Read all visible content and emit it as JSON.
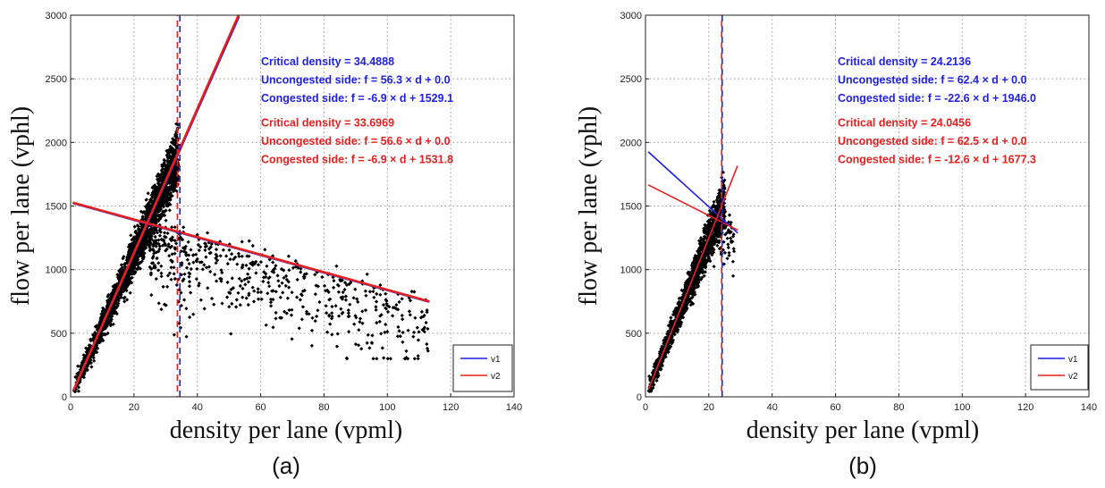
{
  "chart_data": [
    {
      "panel_label": "(a)",
      "type": "scatter",
      "xlabel": "density per lane (vpml)",
      "ylabel": "flow per lane (vphl)",
      "xlim": [
        0,
        140
      ],
      "ylim": [
        0,
        3000
      ],
      "xticks": [
        0,
        20,
        40,
        60,
        80,
        100,
        120,
        140
      ],
      "yticks": [
        0,
        500,
        1000,
        1500,
        2000,
        2500,
        3000
      ],
      "grid": true,
      "legend_position": "bottom-right",
      "series": [
        {
          "name": "v1",
          "color": "#1f1fe6",
          "critical_density": 34.4888,
          "uncongested": {
            "slope": 56.3,
            "intercept": 0.0
          },
          "congested": {
            "slope": -6.9,
            "intercept": 1529.1
          },
          "uncongested_x_range": [
            1,
            53
          ],
          "congested_x_range": [
            1,
            113
          ],
          "critical_line_style": "dashed"
        },
        {
          "name": "v2",
          "color": "#e61f1f",
          "critical_density": 33.6969,
          "uncongested": {
            "slope": 56.6,
            "intercept": 0.0
          },
          "congested": {
            "slope": -6.9,
            "intercept": 1531.8
          },
          "uncongested_x_range": [
            1,
            53
          ],
          "congested_x_range": [
            1,
            113
          ],
          "critical_line_style": "dashed"
        }
      ],
      "scatter": {
        "color": "#000000",
        "marker": "diamond",
        "free_flow_density_range": [
          1,
          34
        ],
        "congested_density_range": [
          25,
          113
        ],
        "congested_flow_max": 1950,
        "congested_flow_min": 300,
        "approx_points": 2600
      },
      "annotations": [
        {
          "text": "Critical density = 34.4888",
          "color": "#1f1fe6"
        },
        {
          "text": "Uncongested side: f = 56.3 × d + 0.0",
          "color": "#1f1fe6"
        },
        {
          "text": "Congested side:   f = -6.9 × d + 1529.1",
          "color": "#1f1fe6"
        },
        {
          "text": "Critical density = 33.6969",
          "color": "#e61f1f"
        },
        {
          "text": "Uncongested side: f = 56.6 × d + 0.0",
          "color": "#e61f1f"
        },
        {
          "text": "Congested side:   f = -6.9 × d + 1531.8",
          "color": "#e61f1f"
        }
      ]
    },
    {
      "panel_label": "(b)",
      "type": "scatter",
      "xlabel": "density per lane (vpml)",
      "ylabel": "flow per lane (vphl)",
      "xlim": [
        0,
        140
      ],
      "ylim": [
        0,
        3000
      ],
      "xticks": [
        0,
        20,
        40,
        60,
        80,
        100,
        120,
        140
      ],
      "yticks": [
        0,
        500,
        1000,
        1500,
        2000,
        2500,
        3000
      ],
      "grid": true,
      "legend_position": "bottom-right",
      "series": [
        {
          "name": "v1",
          "color": "#1f1fe6",
          "critical_density": 24.2136,
          "uncongested": {
            "slope": 62.4,
            "intercept": 0.0
          },
          "congested": {
            "slope": -22.6,
            "intercept": 1946.0
          },
          "uncongested_x_range": [
            1,
            24.2
          ],
          "congested_x_range": [
            1,
            29
          ],
          "critical_line_style": "dashed"
        },
        {
          "name": "v2",
          "color": "#e61f1f",
          "critical_density": 24.0456,
          "uncongested": {
            "slope": 62.5,
            "intercept": 0.0
          },
          "congested": {
            "slope": -12.6,
            "intercept": 1677.3
          },
          "uncongested_x_range": [
            1,
            29
          ],
          "congested_x_range": [
            1,
            29
          ],
          "critical_line_style": "dashed"
        }
      ],
      "scatter": {
        "color": "#000000",
        "marker": "diamond",
        "free_flow_density_range": [
          1,
          25
        ],
        "congested_density_range": [
          20,
          28
        ],
        "congested_flow_max": 1620,
        "congested_flow_min": 950,
        "approx_points": 1500
      },
      "annotations": [
        {
          "text": "Critical density = 24.2136",
          "color": "#1f1fe6"
        },
        {
          "text": "Uncongested side: f = 62.4 × d + 0.0",
          "color": "#1f1fe6"
        },
        {
          "text": "Congested side:   f = -22.6 × d + 1946.0",
          "color": "#1f1fe6"
        },
        {
          "text": "Critical density = 24.0456",
          "color": "#e61f1f"
        },
        {
          "text": "Uncongested side: f = 62.5 × d + 0.0",
          "color": "#e61f1f"
        },
        {
          "text": "Congested side:   f = -12.6 × d + 1677.3",
          "color": "#e61f1f"
        }
      ]
    }
  ]
}
